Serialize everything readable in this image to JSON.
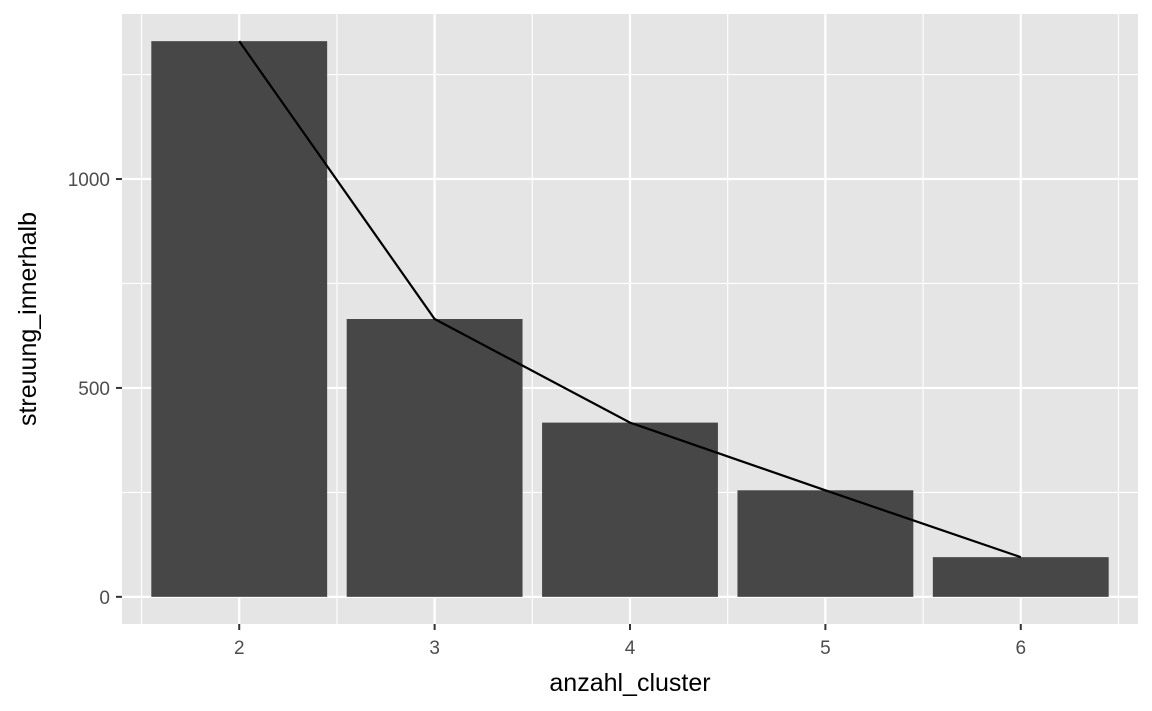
{
  "chart_data": {
    "type": "bar",
    "overlay": "line",
    "title": "",
    "xlabel": "anzahl_cluster",
    "ylabel": "streuung_innerhalb",
    "categories": [
      "2",
      "3",
      "4",
      "5",
      "6"
    ],
    "x": [
      2,
      3,
      4,
      5,
      6
    ],
    "values": [
      1330,
      665,
      417,
      255,
      95
    ],
    "line_values": [
      1330,
      665,
      417,
      255,
      95
    ],
    "xlim": [
      1.4,
      6.6
    ],
    "ylim": [
      -65,
      1395
    ],
    "y_ticks": [
      0,
      500,
      1000
    ],
    "y_tick_labels": [
      "0",
      "500",
      "1000"
    ],
    "x_ticks": [
      2,
      3,
      4,
      5,
      6
    ],
    "x_tick_labels": [
      "2",
      "3",
      "4",
      "5",
      "6"
    ],
    "grid": true,
    "legend": "none",
    "colors": {
      "panel_background": "#e5e5e5",
      "grid_major": "#ffffff",
      "bar_fill": "#474747",
      "line": "#000000",
      "tick_mark": "#333333"
    }
  }
}
